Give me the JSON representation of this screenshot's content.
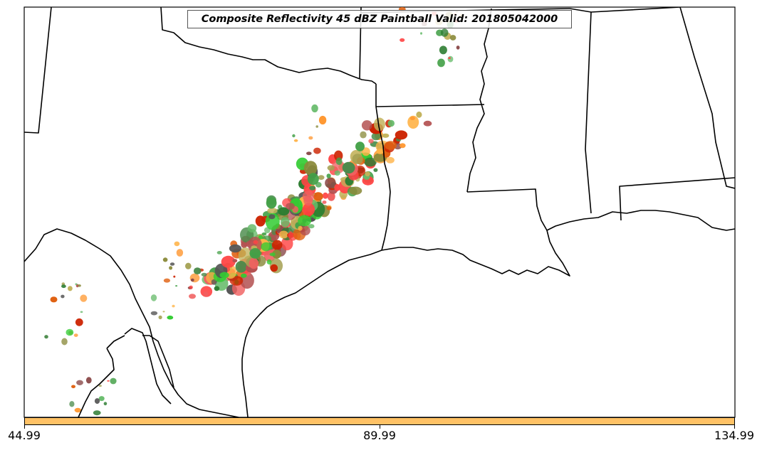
{
  "title": "Composite Reflectivity 45 dBZ Paintball Valid: 201805042000",
  "colorbar": {
    "color": "#ffc266",
    "ticks": [
      "44.99",
      "89.99",
      "134.99"
    ]
  },
  "palette": [
    "#2e7d32",
    "#43a047",
    "#66bb6a",
    "#33cc33",
    "#8a8a3a",
    "#a4a052",
    "#c2b25a",
    "#ff9933",
    "#ffb347",
    "#e06010",
    "#cc2200",
    "#ff4444",
    "#f06060",
    "#b35050",
    "#8b4a4a",
    "#555555",
    "#4b8b4b"
  ]
}
